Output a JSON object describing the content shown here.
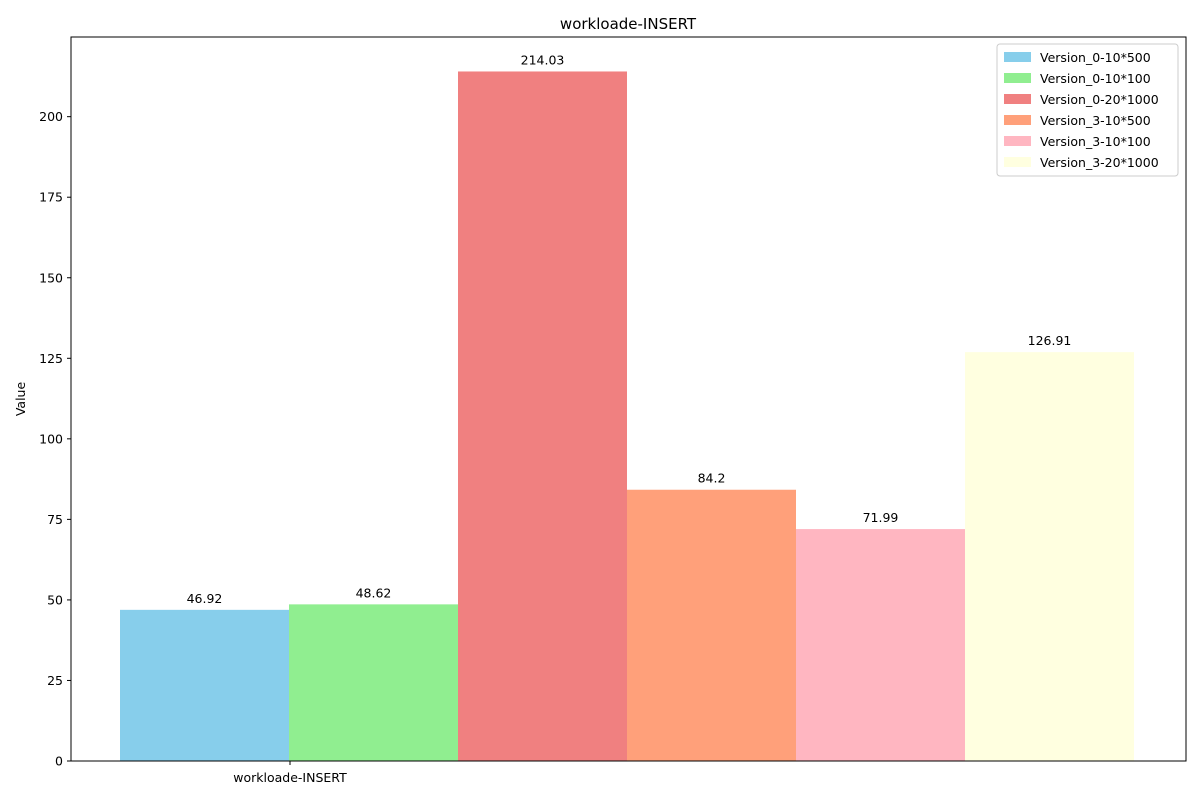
{
  "chart_data": {
    "type": "bar",
    "title": "workloade-INSERT",
    "xlabel": "",
    "ylabel": "Value",
    "categories": [
      "workloade-INSERT"
    ],
    "ylim": [
      0,
      224.73
    ],
    "yticks": [
      0,
      25,
      50,
      75,
      100,
      125,
      150,
      175,
      200
    ],
    "grid": false,
    "legend_position": "top-right",
    "series": [
      {
        "name": "Version_0-10*500",
        "values": [
          46.92
        ],
        "color": "#87CEEB"
      },
      {
        "name": "Version_0-10*100",
        "values": [
          48.62
        ],
        "color": "#90EE90"
      },
      {
        "name": "Version_0-20*1000",
        "values": [
          214.03
        ],
        "color": "#F08080"
      },
      {
        "name": "Version_3-10*500",
        "values": [
          84.2
        ],
        "color": "#FFA07A"
      },
      {
        "name": "Version_3-10*100",
        "values": [
          71.99
        ],
        "color": "#FFB6C1"
      },
      {
        "name": "Version_3-20*1000",
        "values": [
          126.91
        ],
        "color": "#FFFFE0"
      }
    ]
  }
}
